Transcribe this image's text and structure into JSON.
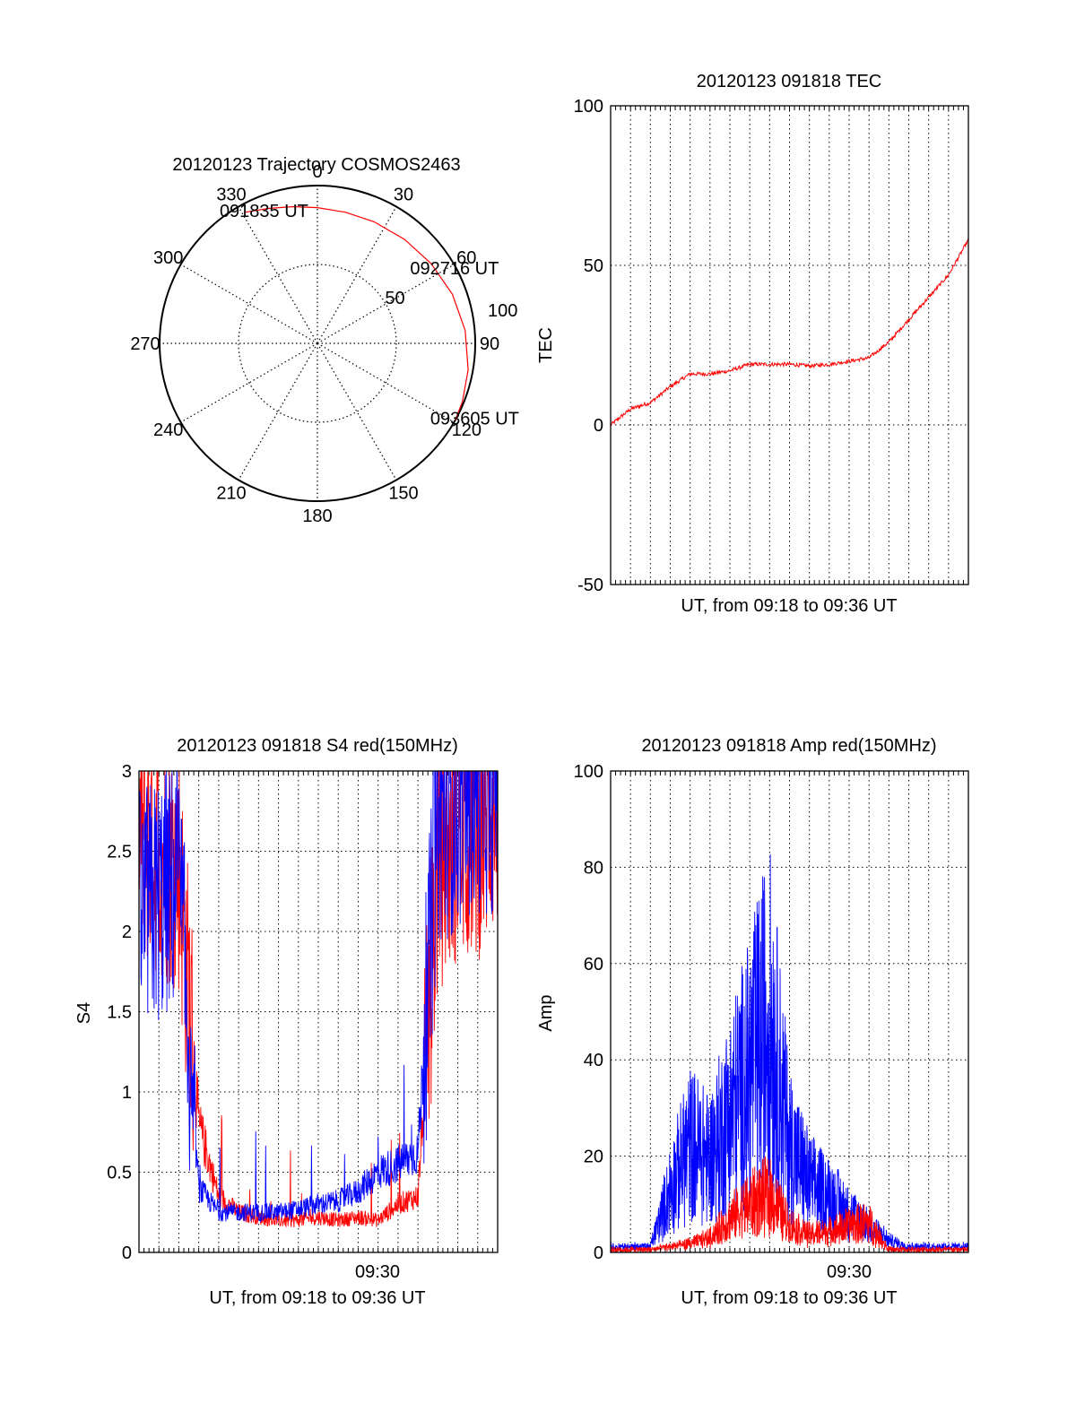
{
  "colors": {
    "red": "#ff0000",
    "blue": "#0000ff",
    "axis": "#000000"
  },
  "chart_data": [
    {
      "type": "polar",
      "id": "traj",
      "title": "20120123 Trajectory COSMOS2463",
      "angle_labels": [
        {
          "deg": 0,
          "text": "0"
        },
        {
          "deg": 30,
          "text": "30"
        },
        {
          "deg": 60,
          "text": "60"
        },
        {
          "deg": 90,
          "text": "90"
        },
        {
          "deg": 120,
          "text": "120"
        },
        {
          "deg": 150,
          "text": "150"
        },
        {
          "deg": 180,
          "text": "180"
        },
        {
          "deg": 210,
          "text": "210"
        },
        {
          "deg": 240,
          "text": "240"
        },
        {
          "deg": 270,
          "text": "270"
        },
        {
          "deg": 300,
          "text": "300"
        },
        {
          "deg": 330,
          "text": "330"
        }
      ],
      "rings": [
        {
          "value": 50,
          "text": "50"
        },
        {
          "value": 100,
          "text": "100"
        }
      ],
      "r_max": 100,
      "trajectory": {
        "color": "red",
        "points": [
          {
            "az": 331,
            "r": 95
          },
          {
            "az": 340,
            "r": 91
          },
          {
            "az": 350,
            "r": 88
          },
          {
            "az": 0,
            "r": 86
          },
          {
            "az": 12,
            "r": 85
          },
          {
            "az": 25,
            "r": 85
          },
          {
            "az": 40,
            "r": 86
          },
          {
            "az": 55,
            "r": 88
          },
          {
            "az": 70,
            "r": 91
          },
          {
            "az": 85,
            "r": 94
          },
          {
            "az": 100,
            "r": 97
          },
          {
            "az": 112,
            "r": 99
          },
          {
            "az": 119,
            "r": 100
          }
        ]
      },
      "annotations": [
        {
          "text": "091835 UT",
          "az": 331,
          "r": 95
        },
        {
          "text": "092716 UT",
          "az": 58,
          "r": 88
        },
        {
          "text": "093605 UT",
          "az": 119,
          "r": 100
        }
      ]
    },
    {
      "type": "line",
      "id": "tec",
      "title": "20120123 091818 TEC",
      "xlabel": "UT, from 09:18 to 09:36 UT",
      "ylabel": "TEC",
      "x_range": [
        "09:18",
        "09:36"
      ],
      "ylim": [
        -50,
        100
      ],
      "yticks": [
        -50,
        0,
        50,
        100
      ],
      "grid": true,
      "series": [
        {
          "color": "red",
          "x": [
            "09:18",
            "09:19",
            "09:20",
            "09:21",
            "09:22",
            "09:23",
            "09:24",
            "09:25",
            "09:26",
            "09:27",
            "09:28",
            "09:29",
            "09:30",
            "09:31",
            "09:32",
            "09:33",
            "09:34",
            "09:35",
            "09:36"
          ],
          "values": [
            0,
            5,
            7,
            12,
            16,
            16,
            17,
            19,
            19,
            19,
            18.5,
            19,
            20,
            21,
            26,
            33,
            40,
            47,
            58
          ]
        }
      ]
    },
    {
      "type": "line",
      "id": "s4",
      "title": "20120123 091818 S4 red(150MHz)",
      "xlabel": "UT, from 09:18 to 09:36 UT",
      "ylabel": "S4",
      "x_range": [
        "09:18",
        "09:36"
      ],
      "x_tick_label": "09:30",
      "ylim": [
        0,
        3
      ],
      "yticks": [
        0,
        0.5,
        1,
        1.5,
        2,
        2.5,
        3
      ],
      "ytick_labels": [
        "0",
        "0.5",
        "1",
        "1.5",
        "2",
        "2.5",
        "3"
      ],
      "grid": true,
      "series": [
        {
          "color": "red",
          "x": [
            "09:18",
            "09:19",
            "09:20",
            "09:21",
            "09:22",
            "09:23",
            "09:24",
            "09:25",
            "09:26",
            "09:27",
            "09:28",
            "09:29",
            "09:30",
            "09:31",
            "09:32",
            "09:33",
            "09:34",
            "09:35",
            "09:36"
          ],
          "values": [
            2.6,
            2.5,
            2.4,
            0.8,
            0.35,
            0.25,
            0.22,
            0.2,
            0.2,
            0.22,
            0.2,
            0.22,
            0.2,
            0.3,
            0.35,
            2.4,
            2.6,
            2.6,
            2.8
          ]
        },
        {
          "color": "blue",
          "x": [
            "09:18",
            "09:19",
            "09:20",
            "09:21",
            "09:22",
            "09:23",
            "09:24",
            "09:25",
            "09:26",
            "09:27",
            "09:28",
            "09:29",
            "09:30",
            "09:31",
            "09:32",
            "09:33",
            "09:34",
            "09:35",
            "09:36"
          ],
          "values": [
            2.1,
            2.2,
            2.3,
            0.4,
            0.25,
            0.25,
            0.25,
            0.25,
            0.27,
            0.3,
            0.32,
            0.38,
            0.5,
            0.55,
            0.62,
            2.7,
            2.8,
            2.9,
            2.9
          ]
        }
      ]
    },
    {
      "type": "line",
      "id": "amp",
      "title": "20120123 091818 Amp red(150MHz)",
      "xlabel": "UT, from 09:18 to 09:36 UT",
      "ylabel": "Amp",
      "x_range": [
        "09:18",
        "09:36"
      ],
      "x_tick_label": "09:30",
      "ylim": [
        0,
        100
      ],
      "yticks": [
        0,
        20,
        40,
        60,
        80,
        100
      ],
      "grid": true,
      "series": [
        {
          "color": "blue",
          "x": [
            "09:18",
            "09:19",
            "09:20",
            "09:21",
            "09:22",
            "09:23",
            "09:24",
            "09:25",
            "09:26",
            "09:27",
            "09:28",
            "09:29",
            "09:30",
            "09:31",
            "09:32",
            "09:33",
            "09:34",
            "09:35",
            "09:36"
          ],
          "values": [
            1,
            1,
            1,
            20,
            35,
            30,
            45,
            60,
            78,
            35,
            22,
            18,
            12,
            8,
            3,
            1,
            1,
            1,
            1
          ]
        },
        {
          "color": "red",
          "x": [
            "09:18",
            "09:19",
            "09:20",
            "09:21",
            "09:22",
            "09:23",
            "09:24",
            "09:25",
            "09:26",
            "09:27",
            "09:28",
            "09:29",
            "09:30",
            "09:31",
            "09:32",
            "09:33",
            "09:34",
            "09:35",
            "09:36"
          ],
          "values": [
            0,
            0,
            0,
            1,
            2,
            4,
            10,
            15,
            18,
            8,
            5,
            6,
            8,
            9,
            0,
            0,
            0,
            0,
            0
          ]
        }
      ]
    }
  ]
}
